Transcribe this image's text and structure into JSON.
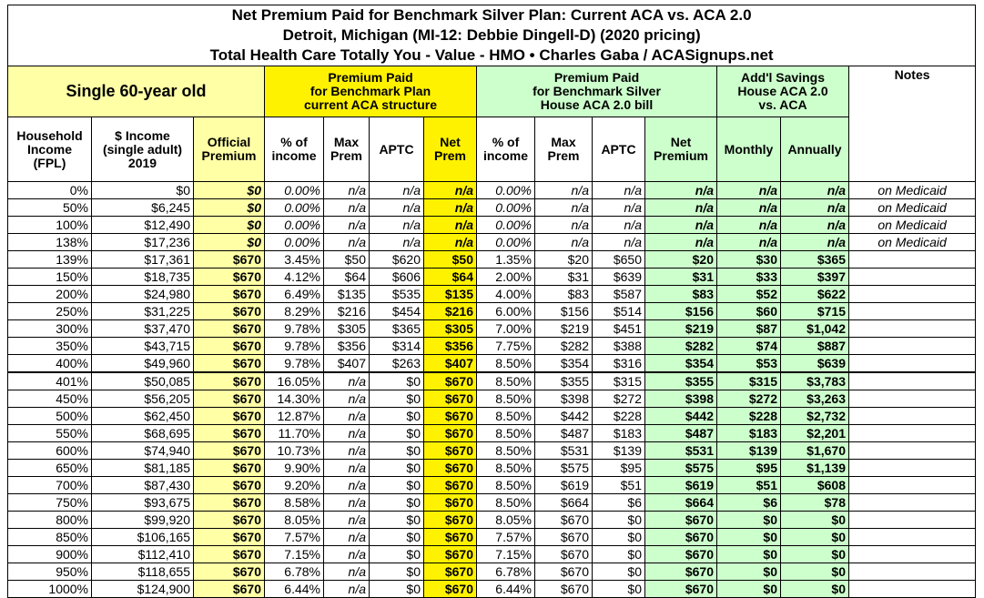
{
  "header": {
    "title": [
      "Net Premium Paid for Benchmark Silver Plan: Current ACA vs. ACA 2.0",
      "Detroit, Michigan (MI-12: Debbie Dingell-D) (2020 pricing)",
      "Total Health Care Totally You - Value - HMO • Charles Gaba / ACASignups.net"
    ]
  },
  "table": {
    "groups": [
      [
        "Single 60-year old"
      ],
      [
        "Premium Paid",
        "for Benchmark Plan",
        "current ACA structure"
      ],
      [
        "Premium Paid",
        "for Benchmark Silver",
        "House ACA 2.0 bill"
      ],
      [
        "Add'l Savings",
        "House ACA 2.0",
        "vs. ACA"
      ]
    ],
    "notes_header": "Notes",
    "columns": [
      [
        "Household",
        "Income",
        "(FPL)"
      ],
      [
        "$ Income",
        "(single adult)",
        "2019"
      ],
      [
        "Official",
        "Premium"
      ],
      [
        "% of",
        "income"
      ],
      [
        "Max",
        "Prem"
      ],
      [
        "APTC"
      ],
      [
        "Net",
        "Prem"
      ],
      [
        "% of",
        "income"
      ],
      [
        "Max",
        "Prem"
      ],
      [
        "APTC"
      ],
      [
        "Net",
        "Premium"
      ],
      [
        "Monthly"
      ],
      [
        "Annually"
      ]
    ],
    "rows": [
      [
        "0%",
        "$0",
        "$0",
        "0.00%",
        "n/a",
        "n/a",
        "n/a",
        "0.00%",
        "n/a",
        "n/a",
        "n/a",
        "n/a",
        "n/a",
        "on Medicaid"
      ],
      [
        "50%",
        "$6,245",
        "$0",
        "0.00%",
        "n/a",
        "n/a",
        "n/a",
        "0.00%",
        "n/a",
        "n/a",
        "n/a",
        "n/a",
        "n/a",
        "on Medicaid"
      ],
      [
        "100%",
        "$12,490",
        "$0",
        "0.00%",
        "n/a",
        "n/a",
        "n/a",
        "0.00%",
        "n/a",
        "n/a",
        "n/a",
        "n/a",
        "n/a",
        "on Medicaid"
      ],
      [
        "138%",
        "$17,236",
        "$0",
        "0.00%",
        "n/a",
        "n/a",
        "n/a",
        "0.00%",
        "n/a",
        "n/a",
        "n/a",
        "n/a",
        "n/a",
        "on Medicaid"
      ],
      [
        "139%",
        "$17,361",
        "$670",
        "3.45%",
        "$50",
        "$620",
        "$50",
        "1.35%",
        "$20",
        "$650",
        "$20",
        "$30",
        "$365"
      ],
      [
        "150%",
        "$18,735",
        "$670",
        "4.12%",
        "$64",
        "$606",
        "$64",
        "2.00%",
        "$31",
        "$639",
        "$31",
        "$33",
        "$397"
      ],
      [
        "200%",
        "$24,980",
        "$670",
        "6.49%",
        "$135",
        "$535",
        "$135",
        "4.00%",
        "$83",
        "$587",
        "$83",
        "$52",
        "$622"
      ],
      [
        "250%",
        "$31,225",
        "$670",
        "8.29%",
        "$216",
        "$454",
        "$216",
        "6.00%",
        "$156",
        "$514",
        "$156",
        "$60",
        "$715"
      ],
      [
        "300%",
        "$37,470",
        "$670",
        "9.78%",
        "$305",
        "$365",
        "$305",
        "7.00%",
        "$219",
        "$451",
        "$219",
        "$87",
        "$1,042"
      ],
      [
        "350%",
        "$43,715",
        "$670",
        "9.78%",
        "$356",
        "$314",
        "$356",
        "7.75%",
        "$282",
        "$388",
        "$282",
        "$74",
        "$887"
      ],
      [
        "400%",
        "$49,960",
        "$670",
        "9.78%",
        "$407",
        "$263",
        "$407",
        "8.50%",
        "$354",
        "$316",
        "$354",
        "$53",
        "$639"
      ],
      [
        "401%",
        "$50,085",
        "$670",
        "16.05%",
        "n/a",
        "$0",
        "$670",
        "8.50%",
        "$355",
        "$315",
        "$355",
        "$315",
        "$3,783"
      ],
      [
        "450%",
        "$56,205",
        "$670",
        "14.30%",
        "n/a",
        "$0",
        "$670",
        "8.50%",
        "$398",
        "$272",
        "$398",
        "$272",
        "$3,263"
      ],
      [
        "500%",
        "$62,450",
        "$670",
        "12.87%",
        "n/a",
        "$0",
        "$670",
        "8.50%",
        "$442",
        "$228",
        "$442",
        "$228",
        "$2,732"
      ],
      [
        "550%",
        "$68,695",
        "$670",
        "11.70%",
        "n/a",
        "$0",
        "$670",
        "8.50%",
        "$487",
        "$183",
        "$487",
        "$183",
        "$2,201"
      ],
      [
        "600%",
        "$74,940",
        "$670",
        "10.73%",
        "n/a",
        "$0",
        "$670",
        "8.50%",
        "$531",
        "$139",
        "$531",
        "$139",
        "$1,670"
      ],
      [
        "650%",
        "$81,185",
        "$670",
        "9.90%",
        "n/a",
        "$0",
        "$670",
        "8.50%",
        "$575",
        "$95",
        "$575",
        "$95",
        "$1,139"
      ],
      [
        "700%",
        "$87,430",
        "$670",
        "9.20%",
        "n/a",
        "$0",
        "$670",
        "8.50%",
        "$619",
        "$51",
        "$619",
        "$51",
        "$608"
      ],
      [
        "750%",
        "$93,675",
        "$670",
        "8.58%",
        "n/a",
        "$0",
        "$670",
        "8.50%",
        "$664",
        "$6",
        "$664",
        "$6",
        "$78"
      ],
      [
        "800%",
        "$99,920",
        "$670",
        "8.05%",
        "n/a",
        "$0",
        "$670",
        "8.05%",
        "$670",
        "$0",
        "$670",
        "$0",
        "$0"
      ],
      [
        "850%",
        "$106,165",
        "$670",
        "7.57%",
        "n/a",
        "$0",
        "$670",
        "7.57%",
        "$670",
        "$0",
        "$670",
        "$0",
        "$0"
      ],
      [
        "900%",
        "$112,410",
        "$670",
        "7.15%",
        "n/a",
        "$0",
        "$670",
        "7.15%",
        "$670",
        "$0",
        "$670",
        "$0",
        "$0"
      ],
      [
        "950%",
        "$118,655",
        "$670",
        "6.78%",
        "n/a",
        "$0",
        "$670",
        "6.78%",
        "$670",
        "$0",
        "$670",
        "$0",
        "$0"
      ],
      [
        "1000%",
        "$124,900",
        "$670",
        "6.44%",
        "n/a",
        "$0",
        "$670",
        "6.44%",
        "$670",
        "$0",
        "$670",
        "$0",
        "$0"
      ]
    ]
  }
}
